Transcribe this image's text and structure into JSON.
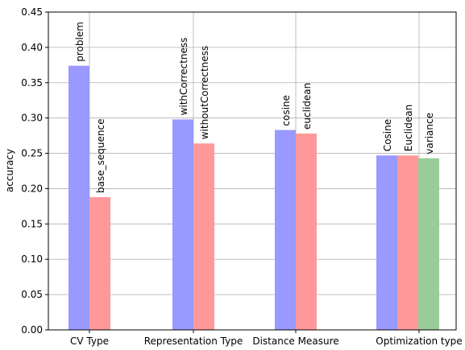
{
  "chart_data": {
    "type": "bar",
    "title": "",
    "xlabel": "",
    "ylabel": "accuracy",
    "ylim": [
      0,
      0.45
    ],
    "yticks": [
      "0.00",
      "0.05",
      "0.10",
      "0.15",
      "0.20",
      "0.25",
      "0.30",
      "0.35",
      "0.40",
      "0.45"
    ],
    "grid": true,
    "groups": [
      {
        "category": "CV Type",
        "bars": [
          {
            "label": "problem",
            "value": 0.374,
            "color": "#9999ff"
          },
          {
            "label": "base_sequence",
            "value": 0.188,
            "color": "#ff9999"
          }
        ]
      },
      {
        "category": "Representation Type",
        "bars": [
          {
            "label": "withCorrectness",
            "value": 0.298,
            "color": "#9999ff"
          },
          {
            "label": "withoutCorrectness",
            "value": 0.264,
            "color": "#ff9999"
          }
        ]
      },
      {
        "category": "Distance Measure",
        "bars": [
          {
            "label": "cosine",
            "value": 0.283,
            "color": "#9999ff"
          },
          {
            "label": "euclidean",
            "value": 0.278,
            "color": "#ff9999"
          }
        ]
      },
      {
        "category": "Optimization type",
        "bars": [
          {
            "label": "Cosine",
            "value": 0.247,
            "color": "#9999ff"
          },
          {
            "label": "Euclidean",
            "value": 0.247,
            "color": "#ff9999"
          },
          {
            "label": "variance",
            "value": 0.243,
            "color": "#99cc99"
          }
        ]
      }
    ]
  }
}
